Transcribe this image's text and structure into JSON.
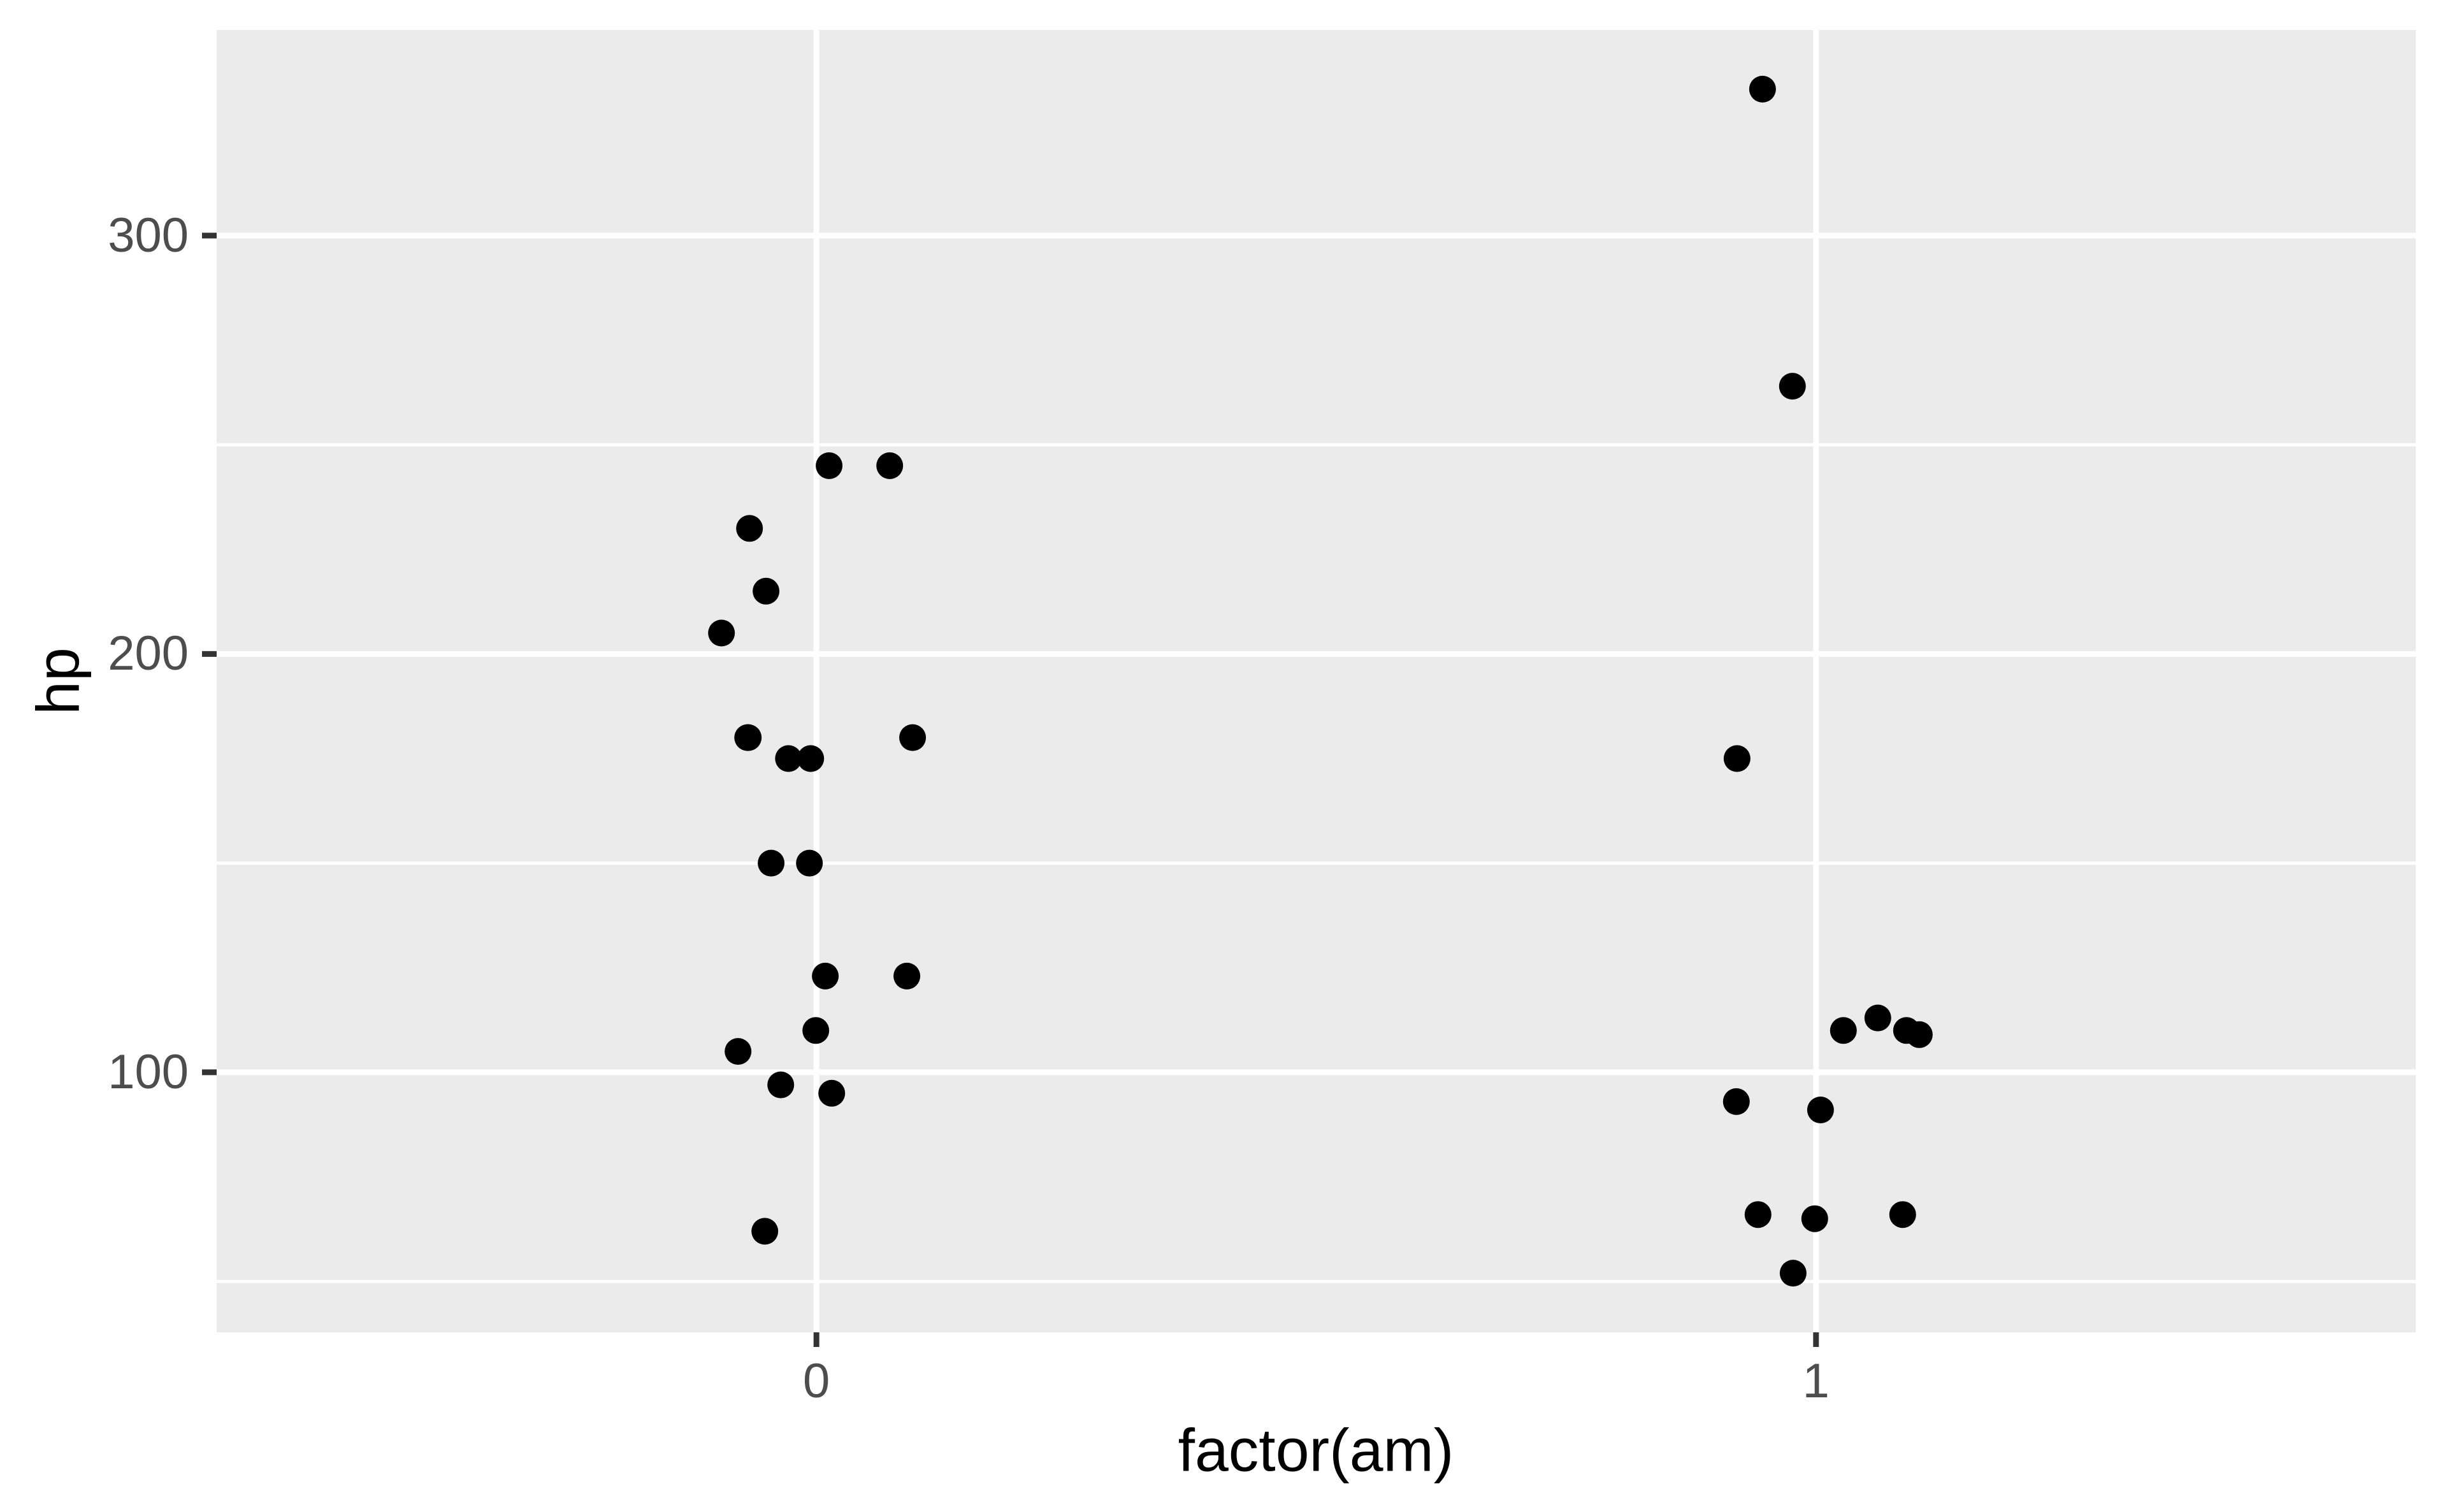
{
  "chart_data": {
    "type": "scatter",
    "title": "",
    "xlabel": "factor(am)",
    "ylabel": "hp",
    "x_categories": [
      "0",
      "1"
    ],
    "y_ticks": [
      100,
      200,
      300
    ],
    "y_minor_ticks": [
      50,
      150,
      250
    ],
    "ylim": [
      37.85,
      349.15
    ],
    "xlim_units": [
      0.4,
      2.6
    ],
    "grid": "major+minor, white on gray panel",
    "legend_position": "none",
    "points": [
      {
        "am": "0",
        "hp": 245,
        "jitter": 0.0127
      },
      {
        "am": "0",
        "hp": 245,
        "jitter": 0.0733
      },
      {
        "am": "0",
        "hp": 230,
        "jitter": -0.0669
      },
      {
        "am": "0",
        "hp": 215,
        "jitter": -0.0504
      },
      {
        "am": "0",
        "hp": 205,
        "jitter": -0.095
      },
      {
        "am": "0",
        "hp": 180,
        "jitter": -0.0688
      },
      {
        "am": "0",
        "hp": 180,
        "jitter": 0.0962
      },
      {
        "am": "0",
        "hp": 180,
        "jitter": -0.0682
      },
      {
        "am": "0",
        "hp": 175,
        "jitter": -0.028
      },
      {
        "am": "0",
        "hp": 175,
        "jitter": -0.0057
      },
      {
        "am": "0",
        "hp": 150,
        "jitter": -0.0453
      },
      {
        "am": "0",
        "hp": 150,
        "jitter": -0.007
      },
      {
        "am": "0",
        "hp": 123,
        "jitter": 0.0089
      },
      {
        "am": "0",
        "hp": 123,
        "jitter": 0.0905
      },
      {
        "am": "0",
        "hp": 110,
        "jitter": -0.0006
      },
      {
        "am": "0",
        "hp": 105,
        "jitter": -0.0784
      },
      {
        "am": "0",
        "hp": 97,
        "jitter": -0.0357
      },
      {
        "am": "0",
        "hp": 95,
        "jitter": 0.0153
      },
      {
        "am": "0",
        "hp": 62,
        "jitter": -0.0516
      },
      {
        "am": "1",
        "hp": 335,
        "jitter": -0.0535
      },
      {
        "am": "1",
        "hp": 264,
        "jitter": -0.0236
      },
      {
        "am": "1",
        "hp": 175,
        "jitter": -0.079
      },
      {
        "am": "1",
        "hp": 113,
        "jitter": 0.0618
      },
      {
        "am": "1",
        "hp": 110,
        "jitter": 0.0274
      },
      {
        "am": "1",
        "hp": 110,
        "jitter": 0.0905
      },
      {
        "am": "1",
        "hp": 109,
        "jitter": 0.1033
      },
      {
        "am": "1",
        "hp": 93,
        "jitter": -0.0797
      },
      {
        "am": "1",
        "hp": 91,
        "jitter": 0.0045
      },
      {
        "am": "1",
        "hp": 66,
        "jitter": -0.058
      },
      {
        "am": "1",
        "hp": 66,
        "jitter": 0.0867
      },
      {
        "am": "1",
        "hp": 65,
        "jitter": -0.0013
      },
      {
        "am": "1",
        "hp": 52,
        "jitter": -0.0229
      }
    ]
  },
  "style": {
    "outer_bg": "#FFFFFF",
    "panel_bg": "#EBEBEB",
    "grid_color": "#FFFFFF",
    "point_color": "#000000",
    "tick_mark_color": "#333333",
    "tick_label_color": "#4D4D4D",
    "axis_title_color": "#000000"
  }
}
